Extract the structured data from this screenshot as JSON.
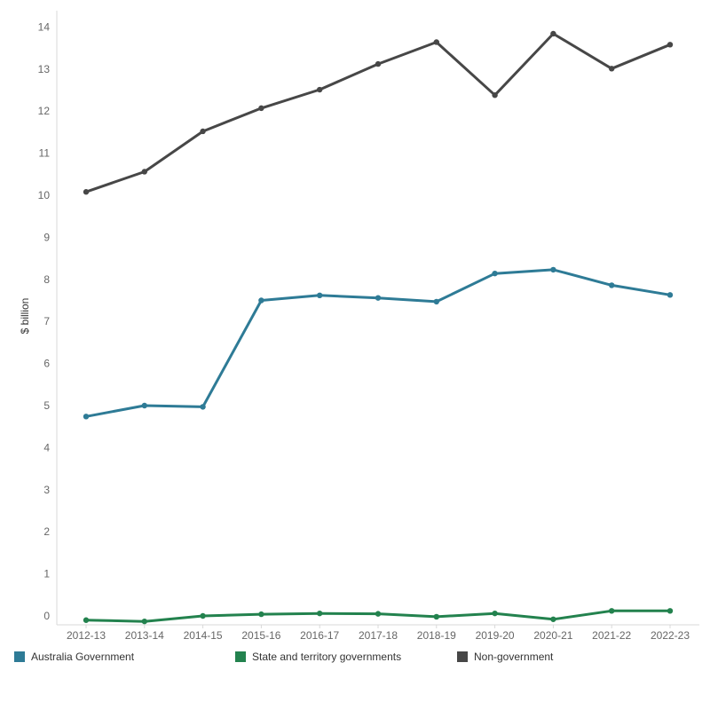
{
  "chart_data": {
    "type": "line",
    "ylabel": "$ billion",
    "xlabel": "",
    "ylim": [
      0,
      14
    ],
    "yticks": [
      0,
      1,
      2,
      3,
      4,
      5,
      6,
      7,
      8,
      9,
      10,
      11,
      12,
      13,
      14
    ],
    "grid": false,
    "legend_placement": "bottom",
    "categories": [
      "2012-13",
      "2013-14",
      "2014-15",
      "2015-16",
      "2016-17",
      "2017-18",
      "2018-19",
      "2019-20",
      "2020-21",
      "2021-22",
      "2022-23"
    ],
    "series": [
      {
        "name": "Australia Government",
        "color": "#2e7b96",
        "values": [
          4.74,
          5.0,
          4.97,
          7.5,
          7.62,
          7.56,
          7.47,
          8.14,
          8.23,
          7.86,
          7.63
        ]
      },
      {
        "name": "State and territory governments",
        "color": "#23824e",
        "values": [
          -0.1,
          -0.13,
          0.0,
          0.04,
          0.06,
          0.05,
          -0.02,
          0.06,
          -0.08,
          0.12,
          0.12
        ]
      },
      {
        "name": "Non-government",
        "color": "#474747",
        "values": [
          10.08,
          10.56,
          11.52,
          12.07,
          12.51,
          13.12,
          13.64,
          12.38,
          13.84,
          13.01,
          13.58
        ]
      }
    ]
  }
}
